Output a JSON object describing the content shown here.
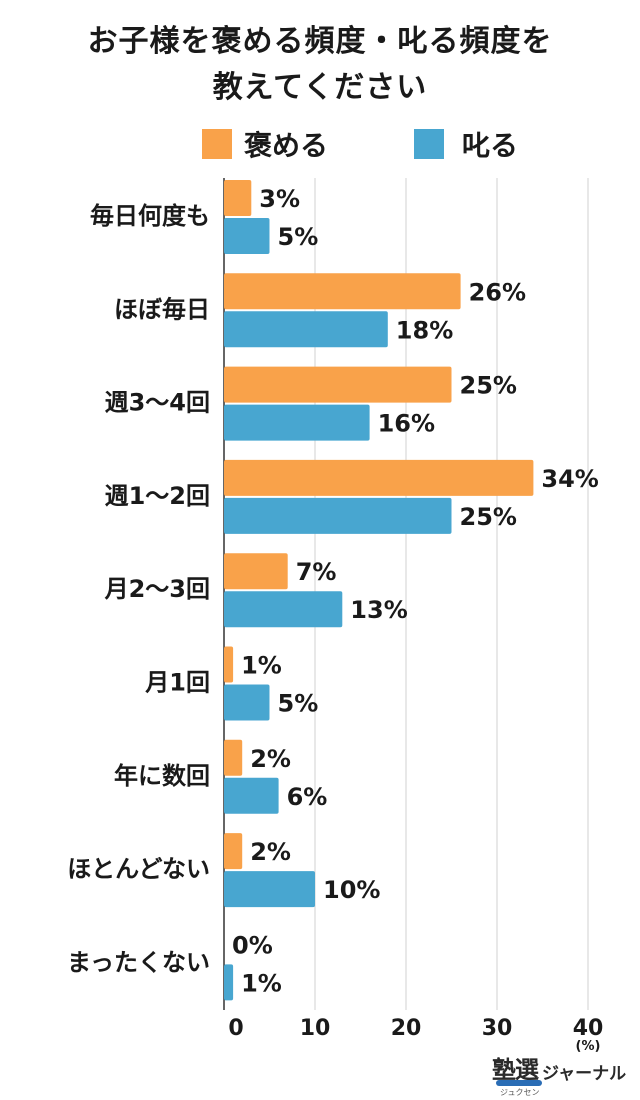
{
  "title": {
    "line1": "お子様を褒める頻度・叱る頻度を",
    "line2": "教えてください"
  },
  "legend": [
    {
      "label": "褒める",
      "color": "#F9A24A"
    },
    {
      "label": "叱る",
      "color": "#48A6D0"
    }
  ],
  "brand": {
    "kanji": "塾選",
    "kana": "ジャーナル",
    "ruby": "ジュクセン"
  },
  "chart_data": {
    "type": "bar",
    "orientation": "horizontal",
    "categories": [
      "毎日何度も",
      "ほぼ毎日",
      "週3〜4回",
      "週1〜2回",
      "月2〜3回",
      "月1回",
      "年に数回",
      "ほとんどない",
      "まったくない"
    ],
    "series": [
      {
        "name": "褒める",
        "color": "#F9A24A",
        "values": [
          3,
          26,
          25,
          34,
          7,
          1,
          2,
          2,
          0
        ],
        "labels": [
          "3%",
          "26%",
          "25%",
          "34%",
          "7%",
          "1%",
          "2%",
          "2%",
          "0%"
        ]
      },
      {
        "name": "叱る",
        "color": "#48A6D0",
        "values": [
          5,
          18,
          16,
          25,
          13,
          5,
          6,
          10,
          1
        ],
        "labels": [
          "5%",
          "18%",
          "16%",
          "25%",
          "13%",
          "5%",
          "6%",
          "10%",
          "1%"
        ]
      }
    ],
    "x_ticks": [
      "0",
      "10",
      "20",
      "30",
      "40"
    ],
    "x_unit": "(%)",
    "xlim": [
      0,
      40
    ],
    "grid": true,
    "legend_position": "top"
  }
}
